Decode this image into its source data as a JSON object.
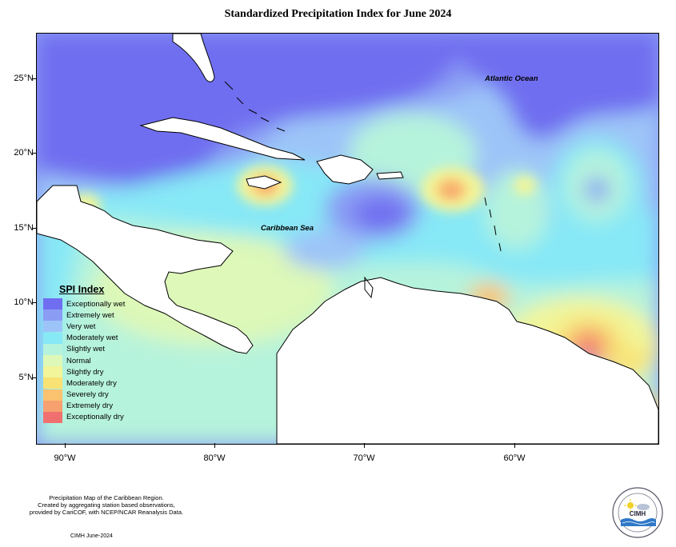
{
  "title": "Standardized Precipitation Index for June 2024",
  "axes": {
    "lat_labels": [
      "25°N",
      "20°N",
      "15°N",
      "10°N",
      "5°N"
    ],
    "lon_labels": [
      "90°W",
      "80°W",
      "70°W",
      "60°W"
    ]
  },
  "regions": {
    "atlantic": "Atlantic Ocean",
    "caribbean": "Caribbean Sea"
  },
  "legend": {
    "title": "SPI Index",
    "items": [
      {
        "label": "Exceptionally wet",
        "color": "#6f6ef0"
      },
      {
        "label": "Extremely wet",
        "color": "#8a9cf4"
      },
      {
        "label": "Very wet",
        "color": "#9dc4f8"
      },
      {
        "label": "Moderately wet",
        "color": "#87e8f6"
      },
      {
        "label": "Slightly wet",
        "color": "#b6f3dc"
      },
      {
        "label": "Normal",
        "color": "#ddf8b8"
      },
      {
        "label": "Slightly dry",
        "color": "#f2f59a"
      },
      {
        "label": "Moderately dry",
        "color": "#f8e274"
      },
      {
        "label": "Severely dry",
        "color": "#fac26e"
      },
      {
        "label": "Extremely dry",
        "color": "#f7a070"
      },
      {
        "label": "Exceptionally dry",
        "color": "#f0706f"
      }
    ]
  },
  "credits": {
    "line1": "Precipitation Map of the Caribbean Region.",
    "line2": "Created by aggregating station based observations,",
    "line3": "provided by CariCOF, with NCEP/NCAR Reanalysis Data."
  },
  "date_label": "CIMH June-2024",
  "logo": {
    "text": "CIMH",
    "icon": "cimh-logo-icon"
  }
}
